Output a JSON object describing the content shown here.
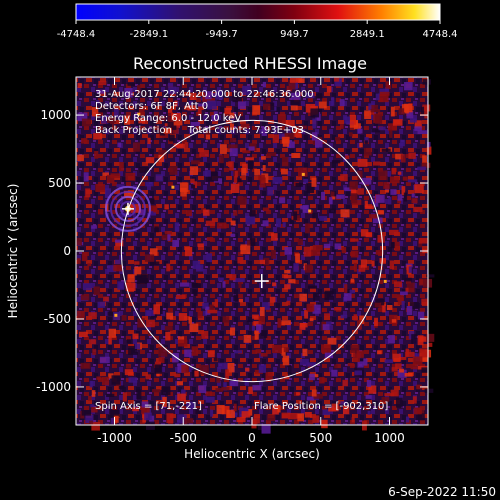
{
  "chart_data": {
    "type": "heatmap",
    "title": "Reconstructed RHESSI Image",
    "xlabel": "Heliocentric X (arcsec)",
    "ylabel": "Heliocentric Y (arcsec)",
    "xlim": [
      -1280,
      1280
    ],
    "ylim": [
      -1280,
      1280
    ],
    "x_ticks": [
      -1000,
      -500,
      0,
      500,
      1000
    ],
    "y_ticks": [
      -1000,
      -500,
      0,
      500,
      1000
    ],
    "colorbar": {
      "ticks": [
        "-4748.4",
        "-2849.1",
        "-949.7",
        "949.7",
        "2849.1",
        "4748.4"
      ],
      "range": [
        -4748.4,
        4748.4
      ]
    },
    "info_lines": [
      "31-Aug-2017 22:44:20.000 to 22:46:36.000",
      "Detectors: 6F 8F, Att 0",
      "Energy Range: 6.0 - 12.0 keV",
      "Back Projection     Total counts: 7.93E+03"
    ],
    "spin_axis_text": "Spin Axis = [71,-221]",
    "flare_position_text": "Flare Position = [-902,310]",
    "spin_axis": [
      71,
      -221
    ],
    "flare_position": [
      -902,
      310
    ],
    "solar_disk": {
      "center": [
        0,
        0
      ],
      "radius_arcsec": 950
    },
    "colors": {
      "background": "#000000",
      "disk_outline": "#ffffff",
      "markers": "#ffffff"
    },
    "grid": false
  },
  "footer": {
    "timestamp": "6-Sep-2022 11:50"
  }
}
